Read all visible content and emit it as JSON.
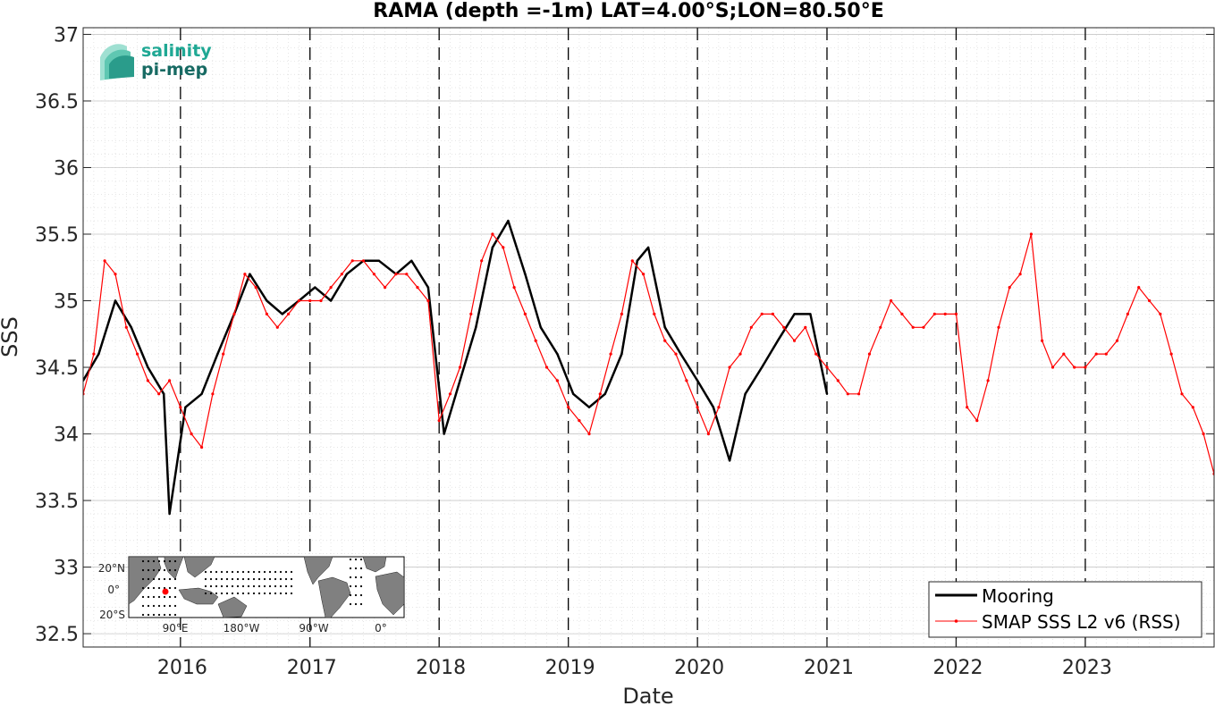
{
  "chart_data": {
    "type": "line",
    "title": "RAMA (depth =-1m) LAT=4.00°S;LON=80.50°E",
    "xlabel": "Date",
    "ylabel": "SSS",
    "xlim": [
      "2015-04-01",
      "2023-12-31"
    ],
    "ylim": [
      32.4,
      37.05
    ],
    "x_ticks": [
      "2016",
      "2017",
      "2018",
      "2019",
      "2020",
      "2021",
      "2022",
      "2023"
    ],
    "y_ticks": [
      "32.5",
      "33",
      "33.5",
      "34",
      "34.5",
      "35",
      "35.5",
      "36",
      "36.5",
      "37"
    ],
    "year_marker_dates": [
      "2016-01-01",
      "2017-01-01",
      "2018-01-01",
      "2019-01-01",
      "2020-01-01",
      "2021-01-01",
      "2022-01-01",
      "2023-01-01"
    ],
    "grid": true,
    "legend_position": "bottom-right",
    "series": [
      {
        "name": "Mooring",
        "color": "#000000",
        "x": [
          "2015-04-01",
          "2015-05-15",
          "2015-07-01",
          "2015-08-15",
          "2015-10-01",
          "2015-11-15",
          "2015-12-01",
          "2016-01-15",
          "2016-03-01",
          "2016-04-15",
          "2016-06-01",
          "2016-07-15",
          "2016-09-01",
          "2016-10-15",
          "2016-12-01",
          "2017-01-15",
          "2017-03-01",
          "2017-04-15",
          "2017-06-01",
          "2017-07-15",
          "2017-09-01",
          "2017-10-15",
          "2017-12-01",
          "2018-01-15",
          "2018-03-01",
          "2018-04-15",
          "2018-06-01",
          "2018-07-15",
          "2018-09-01",
          "2018-10-15",
          "2018-12-01",
          "2019-01-15",
          "2019-03-01",
          "2019-04-15",
          "2019-06-01",
          "2019-07-15",
          "2019-08-15",
          "2019-10-01",
          "2019-11-15",
          "2020-01-01",
          "2020-02-15",
          "2020-04-01",
          "2020-05-15",
          "2020-07-01",
          "2020-08-15",
          "2020-10-01",
          "2020-11-15",
          "2021-01-01"
        ],
        "y": [
          34.4,
          34.6,
          35.0,
          34.8,
          34.5,
          34.3,
          33.4,
          34.2,
          34.3,
          34.6,
          34.9,
          35.2,
          35.0,
          34.9,
          35.0,
          35.1,
          35.0,
          35.2,
          35.3,
          35.3,
          35.2,
          35.3,
          35.1,
          34.0,
          34.4,
          34.8,
          35.4,
          35.6,
          35.2,
          34.8,
          34.6,
          34.3,
          34.2,
          34.3,
          34.6,
          35.3,
          35.4,
          34.8,
          34.6,
          34.4,
          34.2,
          33.8,
          34.3,
          34.5,
          34.7,
          34.9,
          34.9,
          34.3
        ]
      },
      {
        "name": "SMAP SSS L2 v6 (RSS)",
        "color": "#ff0000",
        "x": [
          "2015-04-01",
          "2015-05-01",
          "2015-06-01",
          "2015-07-01",
          "2015-08-01",
          "2015-09-01",
          "2015-10-01",
          "2015-11-01",
          "2015-12-01",
          "2016-01-01",
          "2016-02-01",
          "2016-03-01",
          "2016-04-01",
          "2016-05-01",
          "2016-06-01",
          "2016-07-01",
          "2016-08-01",
          "2016-09-01",
          "2016-10-01",
          "2016-11-01",
          "2016-12-01",
          "2017-01-01",
          "2017-02-01",
          "2017-03-01",
          "2017-04-01",
          "2017-05-01",
          "2017-06-01",
          "2017-07-01",
          "2017-08-01",
          "2017-09-01",
          "2017-10-01",
          "2017-11-01",
          "2017-12-01",
          "2018-01-01",
          "2018-02-01",
          "2018-03-01",
          "2018-04-01",
          "2018-05-01",
          "2018-06-01",
          "2018-07-01",
          "2018-08-01",
          "2018-09-01",
          "2018-10-01",
          "2018-11-01",
          "2018-12-01",
          "2019-01-01",
          "2019-02-01",
          "2019-03-01",
          "2019-04-01",
          "2019-05-01",
          "2019-06-01",
          "2019-07-01",
          "2019-08-01",
          "2019-09-01",
          "2019-10-01",
          "2019-11-01",
          "2019-12-01",
          "2020-01-01",
          "2020-02-01",
          "2020-03-01",
          "2020-04-01",
          "2020-05-01",
          "2020-06-01",
          "2020-07-01",
          "2020-08-01",
          "2020-09-01",
          "2020-10-01",
          "2020-11-01",
          "2020-12-01",
          "2021-01-01",
          "2021-02-01",
          "2021-03-01",
          "2021-04-01",
          "2021-05-01",
          "2021-06-01",
          "2021-07-01",
          "2021-08-01",
          "2021-09-01",
          "2021-10-01",
          "2021-11-01",
          "2021-12-01",
          "2022-01-01",
          "2022-02-01",
          "2022-03-01",
          "2022-04-01",
          "2022-05-01",
          "2022-06-01",
          "2022-07-01",
          "2022-08-01",
          "2022-09-01",
          "2022-10-01",
          "2022-11-01",
          "2022-12-01",
          "2023-01-01",
          "2023-02-01",
          "2023-03-01",
          "2023-04-01",
          "2023-05-01",
          "2023-06-01",
          "2023-07-01",
          "2023-08-01",
          "2023-09-01",
          "2023-10-01",
          "2023-11-01",
          "2023-12-01",
          "2023-12-31"
        ],
        "y": [
          34.3,
          34.6,
          35.3,
          35.2,
          34.8,
          34.6,
          34.4,
          34.3,
          34.4,
          34.2,
          34.0,
          33.9,
          34.3,
          34.6,
          34.9,
          35.2,
          35.1,
          34.9,
          34.8,
          34.9,
          35.0,
          35.0,
          35.0,
          35.1,
          35.2,
          35.3,
          35.3,
          35.2,
          35.1,
          35.2,
          35.2,
          35.1,
          35.0,
          34.1,
          34.3,
          34.5,
          34.9,
          35.3,
          35.5,
          35.4,
          35.1,
          34.9,
          34.7,
          34.5,
          34.4,
          34.2,
          34.1,
          34.0,
          34.3,
          34.6,
          34.9,
          35.3,
          35.2,
          34.9,
          34.7,
          34.6,
          34.4,
          34.2,
          34.0,
          34.2,
          34.5,
          34.6,
          34.8,
          34.9,
          34.9,
          34.8,
          34.7,
          34.8,
          34.6,
          34.5,
          34.4,
          34.3,
          34.3,
          34.6,
          34.8,
          35.0,
          34.9,
          34.8,
          34.8,
          34.9,
          34.9,
          34.9,
          34.2,
          34.1,
          34.4,
          34.8,
          35.1,
          35.2,
          35.5,
          34.7,
          34.5,
          34.6,
          34.5,
          34.5,
          34.6,
          34.6,
          34.7,
          34.9,
          35.1,
          35.0,
          34.9,
          34.6,
          34.3,
          34.2,
          34.0,
          33.7
        ]
      }
    ]
  },
  "logo": {
    "line1": "salinity",
    "line2": "pi-mep",
    "color1": "#1fa894",
    "color2": "#176a63"
  },
  "inset_map": {
    "lat_labels": [
      "20°N",
      "0°",
      "20°S"
    ],
    "lon_labels": [
      "90°E",
      "180°W",
      "90°W",
      "0°"
    ],
    "land_color": "#808080",
    "ocean_color": "#ffffff",
    "marker_color": "#ff0000"
  }
}
